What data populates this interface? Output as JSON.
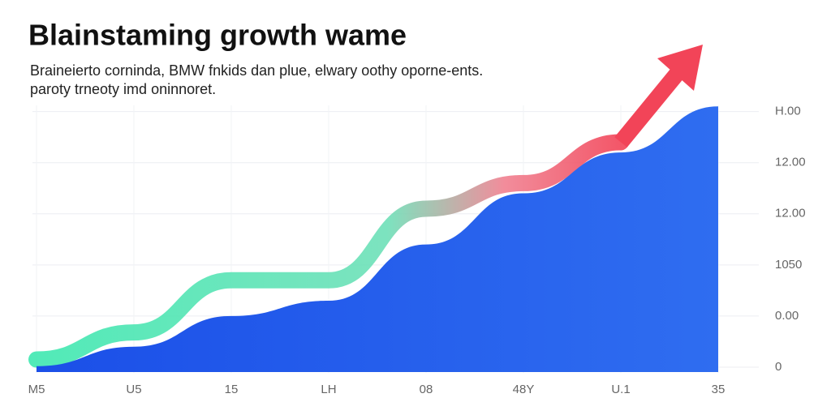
{
  "chart_data": {
    "type": "area",
    "title": "Blainstaming growth wame",
    "subtitle": [
      "Braineierto corninda, BMW fnkids dan plue, elwary oothy oporne-ents.",
      "paroty trneoty imd oninnoret."
    ],
    "categories": [
      "M5",
      "U5",
      "15",
      "LH",
      "08",
      "48Y",
      "U.1",
      "35"
    ],
    "series": [
      {
        "color": "#2f6df0",
        "values": [
          0.02,
          0.4,
          1.0,
          1.3,
          2.4,
          3.4,
          4.2,
          5.1
        ]
      },
      {
        "color": "#3fe0b0",
        "values": [
          0.15,
          0.68,
          1.7,
          1.7,
          3.1,
          3.6,
          4.4,
          null
        ]
      }
    ],
    "ylim": [
      0,
      5.2
    ],
    "yticks": [
      {
        "value": 0,
        "label": "0"
      },
      {
        "value": 1,
        "label": "0.00"
      },
      {
        "value": 2,
        "label": "1050"
      },
      {
        "value": 3,
        "label": "12.00"
      },
      {
        "value": 4,
        "label": "12.00"
      },
      {
        "value": 5,
        "label": "H.00"
      }
    ],
    "grid": true
  }
}
